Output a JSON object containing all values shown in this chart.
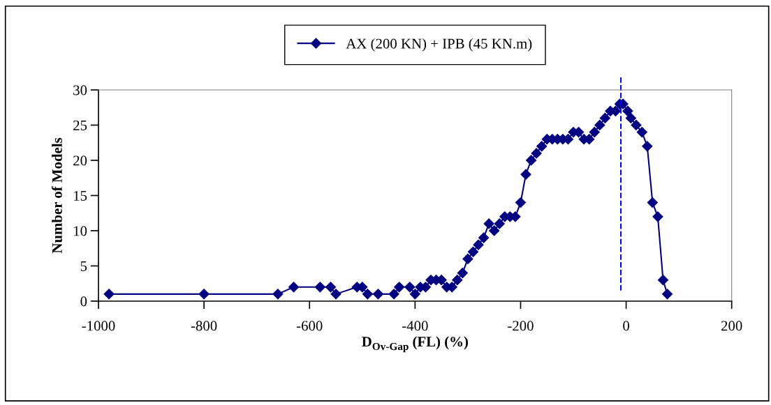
{
  "chart_data": {
    "type": "line",
    "xlabel": "D$_{Ov-Gap}$ (FL) (%)",
    "ylabel": "Number of Models",
    "xlim": [
      -1000,
      200
    ],
    "xticks": [
      -1000,
      -800,
      -600,
      -400,
      -200,
      0,
      200
    ],
    "ylim": [
      0,
      30
    ],
    "yticks": [
      0,
      5,
      10,
      15,
      20,
      25,
      30
    ],
    "marker": "diamond",
    "line_style": "solid",
    "grid": false,
    "legend": "top",
    "ref_lines": [
      {
        "axis": "x",
        "value": -10,
        "color": "#0000ff",
        "line_style": "dashed"
      }
    ],
    "series": [
      {
        "name": "AX (200 KN) + IPB (45 KN.m)",
        "color": "#000080",
        "x": [
          -980,
          -800,
          -660,
          -630,
          -580,
          -560,
          -550,
          -510,
          -500,
          -490,
          -470,
          -440,
          -430,
          -410,
          -400,
          -390,
          -380,
          -370,
          -360,
          -350,
          -340,
          -330,
          -320,
          -310,
          -300,
          -290,
          -280,
          -270,
          -260,
          -250,
          -240,
          -230,
          -220,
          -210,
          -200,
          -190,
          -180,
          -170,
          -160,
          -150,
          -140,
          -130,
          -120,
          -110,
          -100,
          -90,
          -80,
          -70,
          -60,
          -50,
          -40,
          -30,
          -20,
          -12,
          -6,
          3,
          9,
          19,
          30,
          40,
          50,
          60,
          70,
          78
        ],
        "values": [
          1,
          1,
          1,
          2,
          2,
          2,
          1,
          2,
          2,
          1,
          1,
          1,
          2,
          2,
          1,
          2,
          2,
          3,
          3,
          3,
          2,
          2,
          3,
          4,
          6,
          7,
          8,
          9,
          11,
          10,
          11,
          12,
          12,
          12,
          14,
          18,
          20,
          21,
          22,
          23,
          23,
          23,
          23,
          23,
          24,
          24,
          23,
          23,
          24,
          25,
          26,
          27,
          27,
          28,
          28,
          27,
          26,
          25,
          24,
          22,
          14,
          12,
          3,
          1
        ]
      }
    ]
  }
}
